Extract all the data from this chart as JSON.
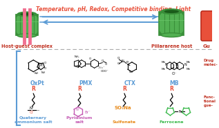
{
  "bg_color": "#ffffff",
  "title_text": "Temperature, pH, Redox, Competitive binding, Light",
  "title_color": "#e8503a",
  "arrow_color": "#5b9bd5",
  "label_host_guest": "Host-guest complex",
  "label_pillararene": "Pillararene host",
  "label_guest": "Gu",
  "drug_labels": [
    "OxPt",
    "PMX",
    "CTX",
    "MB"
  ],
  "drug_label_color": "#5b9bd5",
  "guest_labels": [
    "Quaternary\nammonium salt",
    "Pyridinium\nsalt",
    "Sulfonate",
    "Ferrocene"
  ],
  "guest_colors": [
    "#5b9bd5",
    "#c45ab3",
    "#e88a1a",
    "#3dba4e"
  ],
  "r_color": "#e8503a",
  "label_color_red": "#c03020",
  "dashed_color": "#aaaaaa",
  "bracket_color": "#5b9bd5",
  "pillar_green_light": "#6dc96d",
  "pillar_green_dark": "#3a8f3a",
  "pillar_green_mid": "#52b052",
  "pink_color": "#f07090",
  "right_rect_color": "#e8503a",
  "drug_mol_text": "Drug\nmolec-",
  "functional_text": "Functional\ngue-"
}
